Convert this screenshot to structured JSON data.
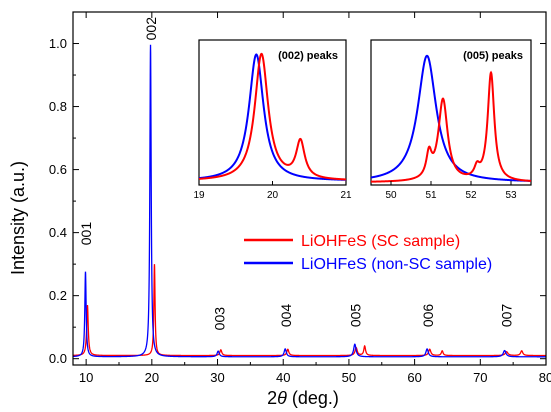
{
  "chart_data": {
    "type": "line",
    "xlabel_prefix": "2",
    "xlabel_theta": "θ",
    "xlabel_suffix": " (deg.)",
    "ylabel": "Intensity (a.u.)",
    "xlim": [
      8,
      80
    ],
    "ylim": [
      -0.02,
      1.1
    ],
    "xticks": [
      "10",
      "20",
      "30",
      "40",
      "50",
      "60",
      "70",
      "80"
    ],
    "xtick_values": [
      10,
      20,
      30,
      40,
      50,
      60,
      70,
      80
    ],
    "yticks": [
      "0.0",
      "0.2",
      "0.4",
      "0.6",
      "0.8",
      "1.0"
    ],
    "ytick_values": [
      0.0,
      0.2,
      0.4,
      0.6,
      0.8,
      1.0
    ],
    "legend_position": "right",
    "series": [
      {
        "name": "LiOHFeS (SC sample)",
        "color": "#ff0000",
        "baseline": 0.01,
        "peaks": [
          {
            "x": 10.2,
            "y": 0.16,
            "w": 0.14
          },
          {
            "x": 20.4,
            "y": 0.29,
            "w": 0.11
          },
          {
            "x": 30.5,
            "y": 0.018,
            "w": 0.18
          },
          {
            "x": 40.7,
            "y": 0.02,
            "w": 0.18
          },
          {
            "x": 51.1,
            "y": 0.025,
            "w": 0.2
          },
          {
            "x": 52.4,
            "y": 0.03,
            "w": 0.16
          },
          {
            "x": 62.3,
            "y": 0.02,
            "w": 0.2
          },
          {
            "x": 64.2,
            "y": 0.015,
            "w": 0.16
          },
          {
            "x": 74.0,
            "y": 0.012,
            "w": 0.25
          },
          {
            "x": 76.3,
            "y": 0.015,
            "w": 0.2
          }
        ]
      },
      {
        "name": "LiOHFeS (non-SC sample)",
        "color": "#0000ff",
        "baseline": 0.006,
        "peaks": [
          {
            "x": 9.9,
            "y": 0.27,
            "w": 0.12
          },
          {
            "x": 19.8,
            "y": 0.99,
            "w": 0.12
          },
          {
            "x": 30.1,
            "y": 0.018,
            "w": 0.2
          },
          {
            "x": 40.3,
            "y": 0.025,
            "w": 0.2
          },
          {
            "x": 50.9,
            "y": 0.04,
            "w": 0.22
          },
          {
            "x": 61.9,
            "y": 0.025,
            "w": 0.22
          },
          {
            "x": 73.7,
            "y": 0.02,
            "w": 0.25
          }
        ]
      }
    ],
    "peak_labels": [
      {
        "text": "001",
        "x": 10.0,
        "y": 0.36
      },
      {
        "text": "002",
        "x": 19.9,
        "y": 1.01
      },
      {
        "text": "003",
        "x": 30.3,
        "y": 0.09
      },
      {
        "text": "004",
        "x": 40.4,
        "y": 0.1
      },
      {
        "text": "005",
        "x": 51.0,
        "y": 0.1
      },
      {
        "text": "006",
        "x": 62.0,
        "y": 0.1
      },
      {
        "text": "007",
        "x": 74.0,
        "y": 0.1
      }
    ],
    "insets": [
      {
        "title": "(002) peaks",
        "xlim": [
          19,
          21
        ],
        "ylim": [
          0,
          1.1
        ],
        "xticks": [
          "19",
          "20",
          "21"
        ],
        "xtick_values": [
          19,
          20,
          21
        ],
        "series": [
          {
            "color": "#0000ff",
            "baseline": 0.03,
            "peaks": [
              {
                "x": 19.78,
                "y": 0.96,
                "w": 0.12
              }
            ]
          },
          {
            "color": "#ff0000",
            "baseline": 0.03,
            "peaks": [
              {
                "x": 19.85,
                "y": 0.96,
                "w": 0.11
              },
              {
                "x": 20.38,
                "y": 0.28,
                "w": 0.07
              }
            ]
          }
        ]
      },
      {
        "title": "(005) peaks",
        "xlim": [
          49.5,
          53.5
        ],
        "ylim": [
          0,
          1.1
        ],
        "xticks": [
          "50",
          "51",
          "52",
          "53"
        ],
        "xtick_values": [
          50,
          51,
          52,
          53
        ],
        "series": [
          {
            "color": "#0000ff",
            "baseline": 0.02,
            "peaks": [
              {
                "x": 50.9,
                "y": 0.96,
                "w": 0.28
              }
            ]
          },
          {
            "color": "#ff0000",
            "baseline": 0.02,
            "peaks": [
              {
                "x": 51.3,
                "y": 0.62,
                "w": 0.14
              },
              {
                "x": 50.95,
                "y": 0.18,
                "w": 0.08
              },
              {
                "x": 52.5,
                "y": 0.82,
                "w": 0.1
              },
              {
                "x": 52.15,
                "y": 0.08,
                "w": 0.08
              }
            ]
          }
        ]
      }
    ]
  }
}
